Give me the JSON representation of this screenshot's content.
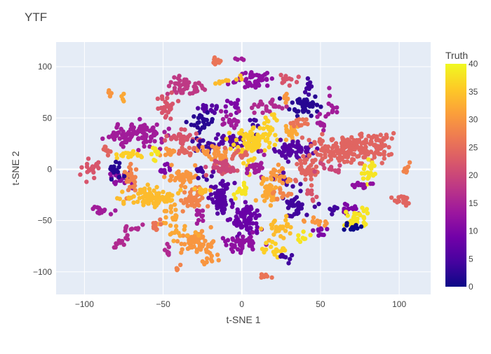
{
  "chart_data": {
    "type": "scatter",
    "title": "YTF",
    "xlabel": "t-SNE 1",
    "ylabel": "t-SNE 2",
    "xlim": [
      -118,
      120
    ],
    "ylim": [
      -122,
      124
    ],
    "x_ticks": [
      -100,
      -50,
      0,
      50,
      100
    ],
    "x_tick_labels": [
      "−100",
      "−50",
      "0",
      "50",
      "100"
    ],
    "y_ticks": [
      -100,
      -50,
      0,
      50,
      100
    ],
    "y_tick_labels": [
      "−100",
      "−50",
      "0",
      "50",
      "100"
    ],
    "grid": true,
    "background_color": "#e5ecf6",
    "colorbar": {
      "title": "Truth",
      "min": 0,
      "max": 40,
      "ticks": [
        0,
        5,
        10,
        15,
        20,
        25,
        30,
        35,
        40
      ],
      "colorscale": [
        "#0d0887",
        "#46039f",
        "#7201a8",
        "#9c179e",
        "#bd3786",
        "#d8576b",
        "#ed7953",
        "#fb9f3a",
        "#fdca26",
        "#f0f921"
      ],
      "placement": "right"
    },
    "clusters": [
      {
        "x": 0,
        "y": 107,
        "truth": 14,
        "n": 4
      },
      {
        "x": 7,
        "y": 88,
        "truth": 12,
        "n": 45
      },
      {
        "x": 29,
        "y": 88,
        "truth": 22,
        "n": 14
      },
      {
        "x": -36,
        "y": 80,
        "truth": 18,
        "n": 50
      },
      {
        "x": -10,
        "y": 87,
        "truth": 34,
        "n": 10
      },
      {
        "x": -16,
        "y": 102,
        "truth": 26,
        "n": 8
      },
      {
        "x": 42,
        "y": 80,
        "truth": 4,
        "n": 10
      },
      {
        "x": 40,
        "y": 63,
        "truth": 2,
        "n": 45
      },
      {
        "x": 56,
        "y": 64,
        "truth": 14,
        "n": 10
      },
      {
        "x": -48,
        "y": 60,
        "truth": 22,
        "n": 30
      },
      {
        "x": -20,
        "y": 60,
        "truth": 6,
        "n": 14
      },
      {
        "x": -25,
        "y": 45,
        "truth": 2,
        "n": 25
      },
      {
        "x": -5,
        "y": 62,
        "truth": 10,
        "n": 12
      },
      {
        "x": -7,
        "y": 48,
        "truth": 14,
        "n": 18
      },
      {
        "x": 17,
        "y": 60,
        "truth": 16,
        "n": 22
      },
      {
        "x": 28,
        "y": 65,
        "truth": 30,
        "n": 8
      },
      {
        "x": 18,
        "y": 45,
        "truth": 36,
        "n": 15
      },
      {
        "x": 32,
        "y": 37,
        "truth": 32,
        "n": 22
      },
      {
        "x": 37,
        "y": 45,
        "truth": 26,
        "n": 12
      },
      {
        "x": 50,
        "y": 45,
        "truth": 14,
        "n": 10
      },
      {
        "x": 8,
        "y": 43,
        "truth": 4,
        "n": 8
      },
      {
        "x": -67,
        "y": 35,
        "truth": 14,
        "n": 110
      },
      {
        "x": -38,
        "y": 30,
        "truth": 22,
        "n": 35
      },
      {
        "x": -24,
        "y": 23,
        "truth": 4,
        "n": 20
      },
      {
        "x": -20,
        "y": 15,
        "truth": 30,
        "n": 20
      },
      {
        "x": -14,
        "y": 12,
        "truth": 30,
        "n": 15
      },
      {
        "x": -7,
        "y": 28,
        "truth": 6,
        "n": 30
      },
      {
        "x": 8,
        "y": 28,
        "truth": 36,
        "n": 90
      },
      {
        "x": 32,
        "y": 19,
        "truth": 6,
        "n": 65
      },
      {
        "x": 67,
        "y": 20,
        "truth": 24,
        "n": 170
      },
      {
        "x": 88,
        "y": 24,
        "truth": 24,
        "n": 35
      },
      {
        "x": -86,
        "y": 20,
        "truth": 24,
        "n": 10
      },
      {
        "x": -48,
        "y": 16,
        "truth": 30,
        "n": 12
      },
      {
        "x": -36,
        "y": 16,
        "truth": 24,
        "n": 12
      },
      {
        "x": -70,
        "y": 13,
        "truth": 36,
        "n": 18
      },
      {
        "x": -54,
        "y": 15,
        "truth": 38,
        "n": 10
      },
      {
        "x": -2,
        "y": 15,
        "truth": 24,
        "n": 12
      },
      {
        "x": -96,
        "y": 3,
        "truth": 22,
        "n": 20
      },
      {
        "x": -78,
        "y": -8,
        "truth": 12,
        "n": 25
      },
      {
        "x": -70,
        "y": -10,
        "truth": 28,
        "n": 25
      },
      {
        "x": -80,
        "y": -2,
        "truth": 2,
        "n": 15
      },
      {
        "x": -50,
        "y": 0,
        "truth": 10,
        "n": 10
      },
      {
        "x": -37,
        "y": -8,
        "truth": 30,
        "n": 40
      },
      {
        "x": -26,
        "y": -4,
        "truth": 4,
        "n": 12
      },
      {
        "x": -14,
        "y": 0,
        "truth": 22,
        "n": 15
      },
      {
        "x": -11,
        "y": 2,
        "truth": 20,
        "n": 30
      },
      {
        "x": 4,
        "y": 4,
        "truth": 36,
        "n": 12
      },
      {
        "x": 10,
        "y": 0,
        "truth": 14,
        "n": 25
      },
      {
        "x": 22,
        "y": 0,
        "truth": 30,
        "n": 15
      },
      {
        "x": 28,
        "y": -10,
        "truth": 6,
        "n": 10
      },
      {
        "x": 42,
        "y": 0,
        "truth": 24,
        "n": 45
      },
      {
        "x": 56,
        "y": 0,
        "truth": 20,
        "n": 12
      },
      {
        "x": 80,
        "y": -2,
        "truth": 38,
        "n": 20
      },
      {
        "x": 77,
        "y": -15,
        "truth": 12,
        "n": 14
      },
      {
        "x": -60,
        "y": -28,
        "truth": 34,
        "n": 90
      },
      {
        "x": -32,
        "y": -30,
        "truth": 28,
        "n": 40
      },
      {
        "x": -13,
        "y": -27,
        "truth": 6,
        "n": 60
      },
      {
        "x": -25,
        "y": -20,
        "truth": 34,
        "n": 10
      },
      {
        "x": -27,
        "y": -45,
        "truth": 14,
        "n": 12
      },
      {
        "x": -45,
        "y": -45,
        "truth": 32,
        "n": 20
      },
      {
        "x": 0,
        "y": -20,
        "truth": 38,
        "n": 14
      },
      {
        "x": 17,
        "y": -20,
        "truth": 32,
        "n": 35
      },
      {
        "x": 34,
        "y": -33,
        "truth": 4,
        "n": 40
      },
      {
        "x": 26,
        "y": -25,
        "truth": 28,
        "n": 12
      },
      {
        "x": 55,
        "y": -37,
        "truth": 4,
        "n": 10
      },
      {
        "x": 67,
        "y": -38,
        "truth": 10,
        "n": 14
      },
      {
        "x": 73,
        "y": -48,
        "truth": 38,
        "n": 30
      },
      {
        "x": 70,
        "y": -55,
        "truth": 0,
        "n": 10
      },
      {
        "x": 102,
        "y": -30,
        "truth": 24,
        "n": 18
      },
      {
        "x": 104,
        "y": 0,
        "truth": 28,
        "n": 8
      },
      {
        "x": -88,
        "y": -40,
        "truth": 14,
        "n": 14
      },
      {
        "x": -70,
        "y": -57,
        "truth": 16,
        "n": 10
      },
      {
        "x": -57,
        "y": -55,
        "truth": 26,
        "n": 10
      },
      {
        "x": 3,
        "y": -50,
        "truth": 8,
        "n": 80
      },
      {
        "x": 0,
        "y": -72,
        "truth": 12,
        "n": 45
      },
      {
        "x": -28,
        "y": -72,
        "truth": 30,
        "n": 60
      },
      {
        "x": -40,
        "y": -64,
        "truth": 32,
        "n": 12
      },
      {
        "x": -20,
        "y": -88,
        "truth": 30,
        "n": 10
      },
      {
        "x": 24,
        "y": -58,
        "truth": 34,
        "n": 30
      },
      {
        "x": 22,
        "y": -78,
        "truth": 36,
        "n": 20
      },
      {
        "x": 28,
        "y": -85,
        "truth": 4,
        "n": 8
      },
      {
        "x": 40,
        "y": -68,
        "truth": 38,
        "n": 8
      },
      {
        "x": 47,
        "y": -50,
        "truth": 30,
        "n": 12
      },
      {
        "x": 50,
        "y": -60,
        "truth": 10,
        "n": 10
      },
      {
        "x": -76,
        "y": -70,
        "truth": 16,
        "n": 12
      },
      {
        "x": -48,
        "y": -82,
        "truth": 16,
        "n": 8
      },
      {
        "x": 15,
        "y": -105,
        "truth": 26,
        "n": 6
      },
      {
        "x": 25,
        "y": -10,
        "truth": 30,
        "n": 8
      },
      {
        "x": 44,
        "y": -25,
        "truth": 22,
        "n": 8
      },
      {
        "x": -40,
        "y": -95,
        "truth": 28,
        "n": 4
      },
      {
        "x": -85,
        "y": 75,
        "truth": 30,
        "n": 4
      },
      {
        "x": -75,
        "y": 70,
        "truth": 32,
        "n": 4
      }
    ]
  }
}
